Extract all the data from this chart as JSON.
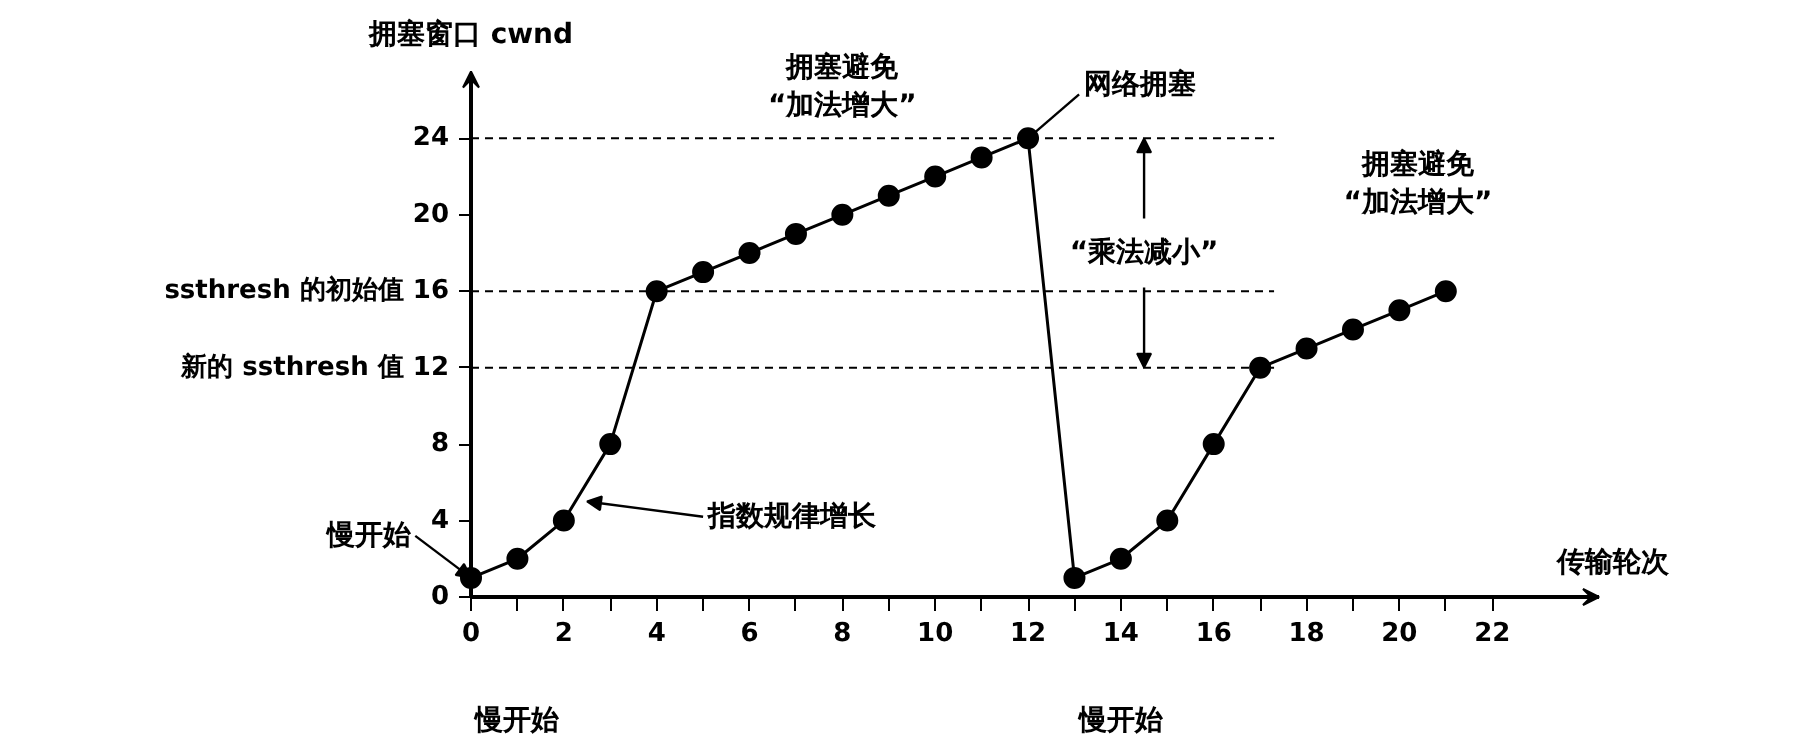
{
  "chart_data": {
    "type": "line",
    "xlabel": "传输轮次",
    "ylabel": "拥塞窗口 cwnd",
    "x": [
      0,
      1,
      2,
      3,
      4,
      5,
      6,
      7,
      8,
      9,
      10,
      11,
      12,
      13,
      14,
      15,
      16,
      17,
      18,
      19,
      20,
      21
    ],
    "series": [
      {
        "color": "#000000",
        "values": [
          1,
          2,
          4,
          8,
          16,
          17,
          18,
          19,
          20,
          21,
          22,
          23,
          24,
          1,
          2,
          4,
          8,
          12,
          13,
          14,
          15,
          16
        ]
      }
    ],
    "marker": "circle",
    "line_style": "solid",
    "grid": false,
    "xlim": [
      0,
      24.3
    ],
    "ylim": [
      0,
      27
    ],
    "xticks": [
      0,
      {
        "value": 1,
        "label": null
      },
      2,
      {
        "value": 3,
        "label": null
      },
      4,
      {
        "value": 5,
        "label": null
      },
      6,
      {
        "value": 7,
        "label": null
      },
      8,
      {
        "value": 9,
        "label": null
      },
      10,
      {
        "value": 11,
        "label": null
      },
      12,
      {
        "value": 13,
        "label": null
      },
      14,
      {
        "value": 15,
        "label": null
      },
      16,
      {
        "value": 17,
        "label": null
      },
      18,
      {
        "value": 19,
        "label": null
      },
      20,
      {
        "value": 21,
        "label": null
      },
      22
    ],
    "yticks": [
      0,
      4,
      8,
      {
        "value": 12,
        "label": "新的 ssthresh 值 12"
      },
      {
        "value": 16,
        "label": "ssthresh 的初始值 16"
      },
      20,
      24
    ],
    "ref_lines": [
      {
        "axis": "y",
        "value": 24,
        "line_style": "dashed"
      },
      {
        "axis": "y",
        "value": 16,
        "line_style": "dashed"
      },
      {
        "axis": "y",
        "value": 12,
        "line_style": "dashed"
      }
    ],
    "annotations": [
      "拥塞避免\n“加法增大”",
      {
        "text": "网络拥塞",
        "x": 12,
        "y": 24
      },
      "拥塞避免\n“加法增大”",
      {
        "text": "“乘法减小”",
        "x": 14.5,
        "y": 24
      },
      {
        "text": "指数规律增长",
        "x": 2.5,
        "y": 5
      },
      {
        "text": "慢开始",
        "x": 0,
        "y": 1
      },
      "慢开始",
      "慢开始"
    ]
  }
}
